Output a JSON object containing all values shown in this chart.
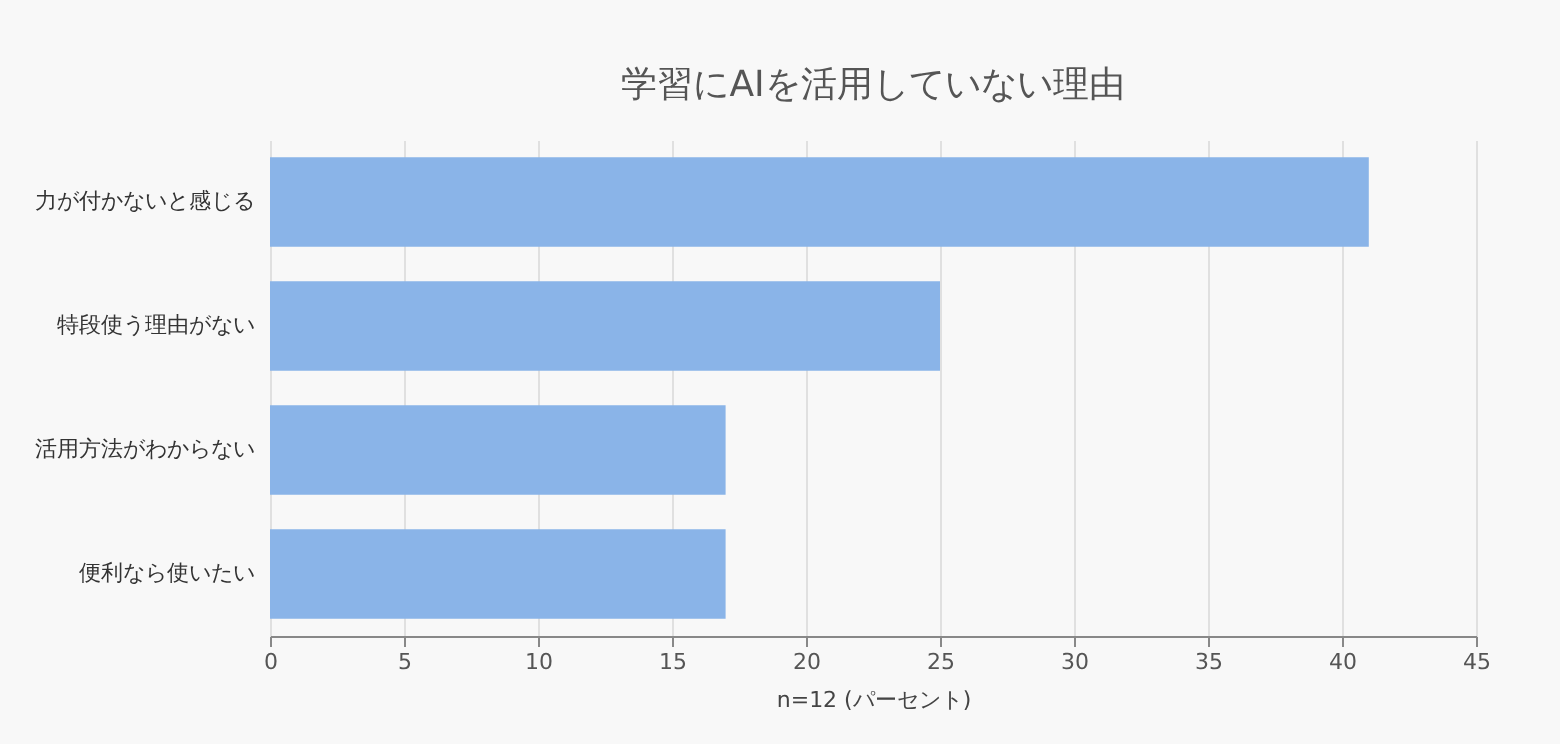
{
  "chart_data": {
    "type": "bar",
    "orientation": "horizontal",
    "title": "学習にAIを活用していない理由",
    "xlabel": "n=12 (パーセント)",
    "categories": [
      "力が付かないと感じる",
      "特段使う理由がない",
      "活用方法がわからない",
      "便利なら使いたい"
    ],
    "values": [
      41,
      25,
      17,
      17
    ],
    "color": "#8ab4e8",
    "xlim": [
      0,
      45
    ],
    "xticks": [
      0,
      5,
      10,
      15,
      20,
      25,
      30,
      35,
      40,
      45
    ],
    "grid": "x"
  }
}
